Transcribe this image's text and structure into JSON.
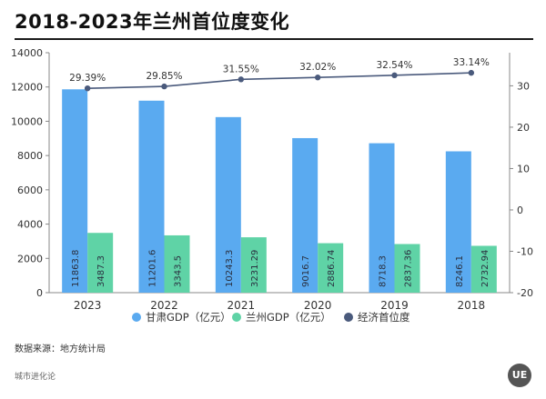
{
  "page": {
    "source_note": "数据来源：地方统计局",
    "brand_text": "城市进化论",
    "logo_text": "UE"
  },
  "chart_data": {
    "type": "bar",
    "title": "2018-2023年兰州首位度变化",
    "categories": [
      "2023",
      "2022",
      "2021",
      "2020",
      "2019",
      "2018"
    ],
    "series": [
      {
        "name": "甘肃GDP（亿元）",
        "type": "bar",
        "axis": "left",
        "color": "#5aaaf0",
        "values": [
          11863.8,
          11201.6,
          10243.3,
          9016.7,
          8718.3,
          8246.1
        ],
        "labels": [
          "11863.8",
          "11201.6",
          "10243.3",
          "9016.7",
          "8718.3",
          "8246.1"
        ]
      },
      {
        "name": "兰州GDP（亿元）",
        "type": "bar",
        "axis": "left",
        "color": "#5fd3a6",
        "values": [
          3487.3,
          3343.5,
          3231.29,
          2886.74,
          2837.36,
          2732.94
        ],
        "labels": [
          "3487.3",
          "3343.5",
          "3231.29",
          "2886.74",
          "2837.36",
          "2732.94"
        ]
      },
      {
        "name": "经济首位度",
        "type": "line",
        "axis": "right",
        "color": "#4a5a7c",
        "values": [
          29.39,
          29.85,
          31.55,
          32.02,
          32.54,
          33.14
        ],
        "labels": [
          "29.39%",
          "29.85%",
          "31.55%",
          "32.02%",
          "32.54%",
          "33.14%"
        ]
      }
    ],
    "left_axis": {
      "ylim": [
        0,
        14000
      ],
      "ticks": [
        0,
        2000,
        4000,
        6000,
        8000,
        10000,
        12000,
        14000
      ],
      "tick_labels": [
        "0",
        "2000",
        "4000",
        "6000",
        "8000",
        "10000",
        "12000",
        "14000"
      ]
    },
    "right_axis": {
      "ylim": [
        -20,
        38
      ],
      "ticks": [
        -20,
        -10,
        0,
        10,
        20,
        30
      ],
      "tick_labels": [
        "-20",
        "-10",
        "0",
        "10",
        "20",
        "30"
      ]
    },
    "grid": false,
    "legend_position": "bottom"
  }
}
